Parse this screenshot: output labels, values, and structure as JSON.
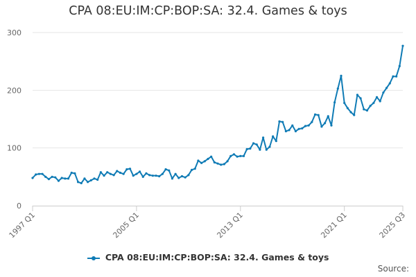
{
  "title": "CPA 08:EU:IM:CP:BOP:SA: 32.4. Games & toys",
  "source_label": "Source:",
  "chart_data": {
    "type": "line",
    "title": "CPA 08:EU:IM:CP:BOP:SA: 32.4. Games & toys",
    "xlabel": "",
    "ylabel": "",
    "ylim": [
      0,
      300
    ],
    "yticks": [
      0,
      100,
      200,
      300
    ],
    "xticks": [
      "1997 Q1",
      "2005 Q1",
      "2013 Q1",
      "2021 Q1",
      "2025 Q3"
    ],
    "grid": true,
    "legend_position": "bottom",
    "color": "#0f7bb5",
    "series": [
      {
        "name": "CPA 08:EU:IM:CP:BOP:SA: 32.4. Games & toys",
        "x": [
          "1997 Q1",
          "1997 Q2",
          "1997 Q3",
          "1997 Q4",
          "1998 Q1",
          "1998 Q2",
          "1998 Q3",
          "1998 Q4",
          "1999 Q1",
          "1999 Q2",
          "1999 Q3",
          "1999 Q4",
          "2000 Q1",
          "2000 Q2",
          "2000 Q3",
          "2000 Q4",
          "2001 Q1",
          "2001 Q2",
          "2001 Q3",
          "2001 Q4",
          "2002 Q1",
          "2002 Q2",
          "2002 Q3",
          "2002 Q4",
          "2003 Q1",
          "2003 Q2",
          "2003 Q3",
          "2003 Q4",
          "2004 Q1",
          "2004 Q2",
          "2004 Q3",
          "2004 Q4",
          "2005 Q1",
          "2005 Q2",
          "2005 Q3",
          "2005 Q4",
          "2006 Q1",
          "2006 Q2",
          "2006 Q3",
          "2006 Q4",
          "2007 Q1",
          "2007 Q2",
          "2007 Q3",
          "2007 Q4",
          "2008 Q1",
          "2008 Q2",
          "2008 Q3",
          "2008 Q4",
          "2009 Q1",
          "2009 Q2",
          "2009 Q3",
          "2009 Q4",
          "2010 Q1",
          "2010 Q2",
          "2010 Q3",
          "2010 Q4",
          "2011 Q1",
          "2011 Q2",
          "2011 Q3",
          "2011 Q4",
          "2012 Q1",
          "2012 Q2",
          "2012 Q3",
          "2012 Q4",
          "2013 Q1",
          "2013 Q2",
          "2013 Q3",
          "2013 Q4",
          "2014 Q1",
          "2014 Q2",
          "2014 Q3",
          "2014 Q4",
          "2015 Q1",
          "2015 Q2",
          "2015 Q3",
          "2015 Q4",
          "2016 Q1",
          "2016 Q2",
          "2016 Q3",
          "2016 Q4",
          "2017 Q1",
          "2017 Q2",
          "2017 Q3",
          "2017 Q4",
          "2018 Q1",
          "2018 Q2",
          "2018 Q3",
          "2018 Q4",
          "2019 Q1",
          "2019 Q2",
          "2019 Q3",
          "2019 Q4",
          "2020 Q1",
          "2020 Q2",
          "2020 Q3",
          "2020 Q4",
          "2021 Q1",
          "2021 Q2",
          "2021 Q3",
          "2021 Q4",
          "2022 Q1",
          "2022 Q2",
          "2022 Q3",
          "2022 Q4",
          "2023 Q1",
          "2023 Q2",
          "2023 Q3",
          "2023 Q4",
          "2024 Q1",
          "2024 Q2",
          "2024 Q3",
          "2024 Q4",
          "2025 Q1",
          "2025 Q2",
          "2025 Q3"
        ],
        "values": [
          48,
          54,
          55,
          55,
          50,
          46,
          50,
          49,
          43,
          48,
          47,
          47,
          57,
          56,
          41,
          39,
          47,
          41,
          44,
          47,
          45,
          58,
          52,
          58,
          55,
          53,
          60,
          57,
          55,
          63,
          64,
          52,
          55,
          59,
          50,
          56,
          53,
          52,
          52,
          51,
          55,
          63,
          61,
          47,
          55,
          48,
          51,
          49,
          53,
          62,
          64,
          78,
          74,
          77,
          81,
          85,
          75,
          73,
          71,
          72,
          77,
          86,
          89,
          85,
          86,
          86,
          98,
          99,
          108,
          106,
          97,
          118,
          97,
          102,
          120,
          112,
          146,
          145,
          129,
          131,
          139,
          129,
          133,
          134,
          138,
          139,
          145,
          158,
          157,
          137,
          143,
          155,
          139,
          179,
          203,
          225,
          178,
          169,
          162,
          157,
          192,
          186,
          167,
          165,
          173,
          178,
          188,
          181,
          196,
          204,
          212,
          224,
          224,
          242,
          277
        ]
      }
    ]
  }
}
